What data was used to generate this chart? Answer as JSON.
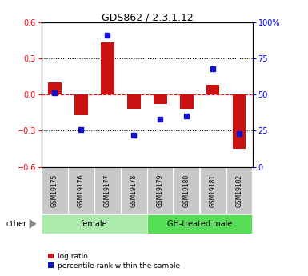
{
  "title": "GDS862 / 2.3.1.12",
  "samples": [
    "GSM19175",
    "GSM19176",
    "GSM19177",
    "GSM19178",
    "GSM19179",
    "GSM19180",
    "GSM19181",
    "GSM19182"
  ],
  "log_ratio": [
    0.1,
    -0.17,
    0.43,
    -0.12,
    -0.08,
    -0.12,
    0.08,
    -0.45
  ],
  "percentile": [
    51,
    26,
    91,
    22,
    33,
    35,
    68,
    23
  ],
  "groups": [
    {
      "label": "female",
      "start": 0,
      "end": 4,
      "color": "#aaeaaa"
    },
    {
      "label": "GH-treated male",
      "start": 4,
      "end": 8,
      "color": "#55dd55"
    }
  ],
  "bar_color": "#CC1111",
  "dot_color": "#1111CC",
  "label_box_color": "#C8C8C8",
  "ylim_left": [
    -0.6,
    0.6
  ],
  "ylim_right": [
    0,
    100
  ],
  "yticks_left": [
    -0.6,
    -0.3,
    0.0,
    0.3,
    0.6
  ],
  "yticks_right": [
    0,
    25,
    50,
    75,
    100
  ],
  "legend_log_ratio": "log ratio",
  "legend_percentile": "percentile rank within the sample",
  "other_label": "other"
}
